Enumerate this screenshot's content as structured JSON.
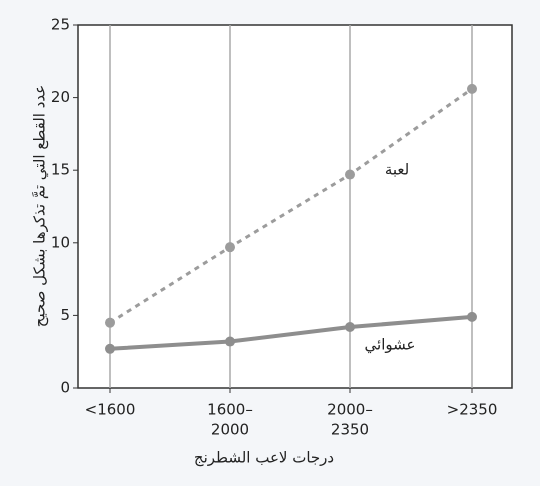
{
  "chart_data": {
    "type": "line",
    "x_label": "درجات لاعب الشطرنج",
    "y_label": "عدد القطع التي تمَّ تذكرها بشكل صحيح",
    "categories": [
      [
        "<1600"
      ],
      [
        "1600–",
        "2000"
      ],
      [
        "2000–",
        "2350"
      ],
      [
        ">2350"
      ]
    ],
    "series": [
      {
        "name": "لعبة",
        "color": "#9c9c9c",
        "style": "dashed",
        "values": [
          4.5,
          9.7,
          14.7,
          20.6
        ]
      },
      {
        "name": "عشوائي",
        "color": "#8e8e8e",
        "style": "solid",
        "values": [
          2.7,
          3.2,
          4.2,
          4.9
        ]
      }
    ],
    "ylim": [
      0,
      25
    ],
    "yticks": [
      0,
      5,
      10,
      15,
      20,
      25
    ],
    "grid": true
  }
}
